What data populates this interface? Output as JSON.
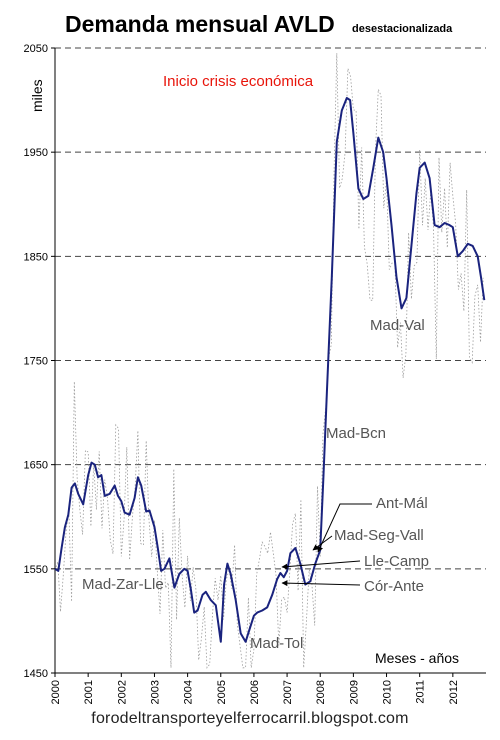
{
  "chart_data": {
    "type": "line",
    "title": "Demanda mensual AVLD",
    "subtitle": "desestacionalizada",
    "ylabel": "miles",
    "xlabel": "Meses - años",
    "ylim": [
      1450,
      2050
    ],
    "xlim": [
      2000,
      2013
    ],
    "y_ticks": [
      "1450",
      "1550",
      "1650",
      "1750",
      "1850",
      "1950",
      "2050"
    ],
    "x_ticks": [
      "2000",
      "2001",
      "2002",
      "2003",
      "2004",
      "2005",
      "2006",
      "2007",
      "2008",
      "2009",
      "2010",
      "2011",
      "2012"
    ],
    "grid": "horizontal dashed",
    "series": [
      {
        "color": "#1a237e",
        "x": [
          2000.0,
          2000.1,
          2000.2,
          2000.3,
          2000.4,
          2000.5,
          2000.6,
          2000.7,
          2000.85,
          2001.0,
          2001.1,
          2001.2,
          2001.3,
          2001.4,
          2001.5,
          2001.65,
          2001.8,
          2001.9,
          2002.0,
          2002.1,
          2002.25,
          2002.4,
          2002.5,
          2002.6,
          2002.75,
          2002.85,
          2003.0,
          2003.1,
          2003.2,
          2003.3,
          2003.45,
          2003.6,
          2003.75,
          2003.9,
          2004.0,
          2004.1,
          2004.2,
          2004.3,
          2004.45,
          2004.55,
          2004.7,
          2004.85,
          2005.0,
          2005.1,
          2005.2,
          2005.3,
          2005.45,
          2005.6,
          2005.75,
          2005.85,
          2006.0,
          2006.1,
          2006.25,
          2006.4,
          2006.55,
          2006.7,
          2006.8,
          2006.9,
          2007.0,
          2007.1,
          2007.25,
          2007.4,
          2007.55,
          2007.7,
          2007.85,
          2008.0,
          2008.1,
          2008.2,
          2008.35,
          2008.5,
          2008.65,
          2008.8,
          2008.9,
          2009.0,
          2009.15,
          2009.3,
          2009.45,
          2009.6,
          2009.75,
          2009.9,
          2010.0,
          2010.15,
          2010.3,
          2010.45,
          2010.6,
          2010.75,
          2010.9,
          2011.0,
          2011.15,
          2011.3,
          2011.45,
          2011.6,
          2011.75,
          2011.9,
          2012.0,
          2012.15,
          2012.3,
          2012.45,
          2012.6,
          2012.75,
          2012.85,
          2012.95
        ],
        "values": [
          1550,
          1548,
          1570,
          1590,
          1602,
          1628,
          1632,
          1622,
          1612,
          1640,
          1652,
          1650,
          1638,
          1640,
          1620,
          1622,
          1630,
          1620,
          1615,
          1604,
          1602,
          1618,
          1638,
          1630,
          1605,
          1606,
          1590,
          1570,
          1548,
          1550,
          1560,
          1532,
          1545,
          1550,
          1548,
          1530,
          1508,
          1510,
          1525,
          1528,
          1520,
          1515,
          1480,
          1535,
          1555,
          1545,
          1520,
          1488,
          1480,
          1490,
          1505,
          1508,
          1510,
          1513,
          1525,
          1540,
          1546,
          1542,
          1548,
          1565,
          1570,
          1555,
          1535,
          1538,
          1555,
          1568,
          1640,
          1720,
          1830,
          1960,
          1990,
          2002,
          2000,
          1968,
          1915,
          1905,
          1908,
          1935,
          1964,
          1950,
          1925,
          1880,
          1830,
          1800,
          1810,
          1860,
          1910,
          1935,
          1940,
          1925,
          1880,
          1878,
          1882,
          1880,
          1878,
          1850,
          1855,
          1862,
          1860,
          1850,
          1830,
          1808
        ]
      }
    ],
    "annotations": [
      {
        "text": "Inicio crisis económica",
        "color": "#e8140a"
      },
      {
        "text": "Mad-Val",
        "color": "#555555"
      },
      {
        "text": "Mad-Bcn",
        "color": "#555555"
      },
      {
        "text": "Ant-Mál",
        "color": "#555555"
      },
      {
        "text": "Mad-Seg-Vall",
        "color": "#555555"
      },
      {
        "text": "Lle-Camp",
        "color": "#555555"
      },
      {
        "text": "Cór-Ante",
        "color": "#555555"
      },
      {
        "text": "Mad-Zar-Lle",
        "color": "#555555"
      },
      {
        "text": "Mad-Tol",
        "color": "#555555"
      }
    ]
  },
  "footer": "forodeltransporteyelferrocarril.blogspot.com"
}
